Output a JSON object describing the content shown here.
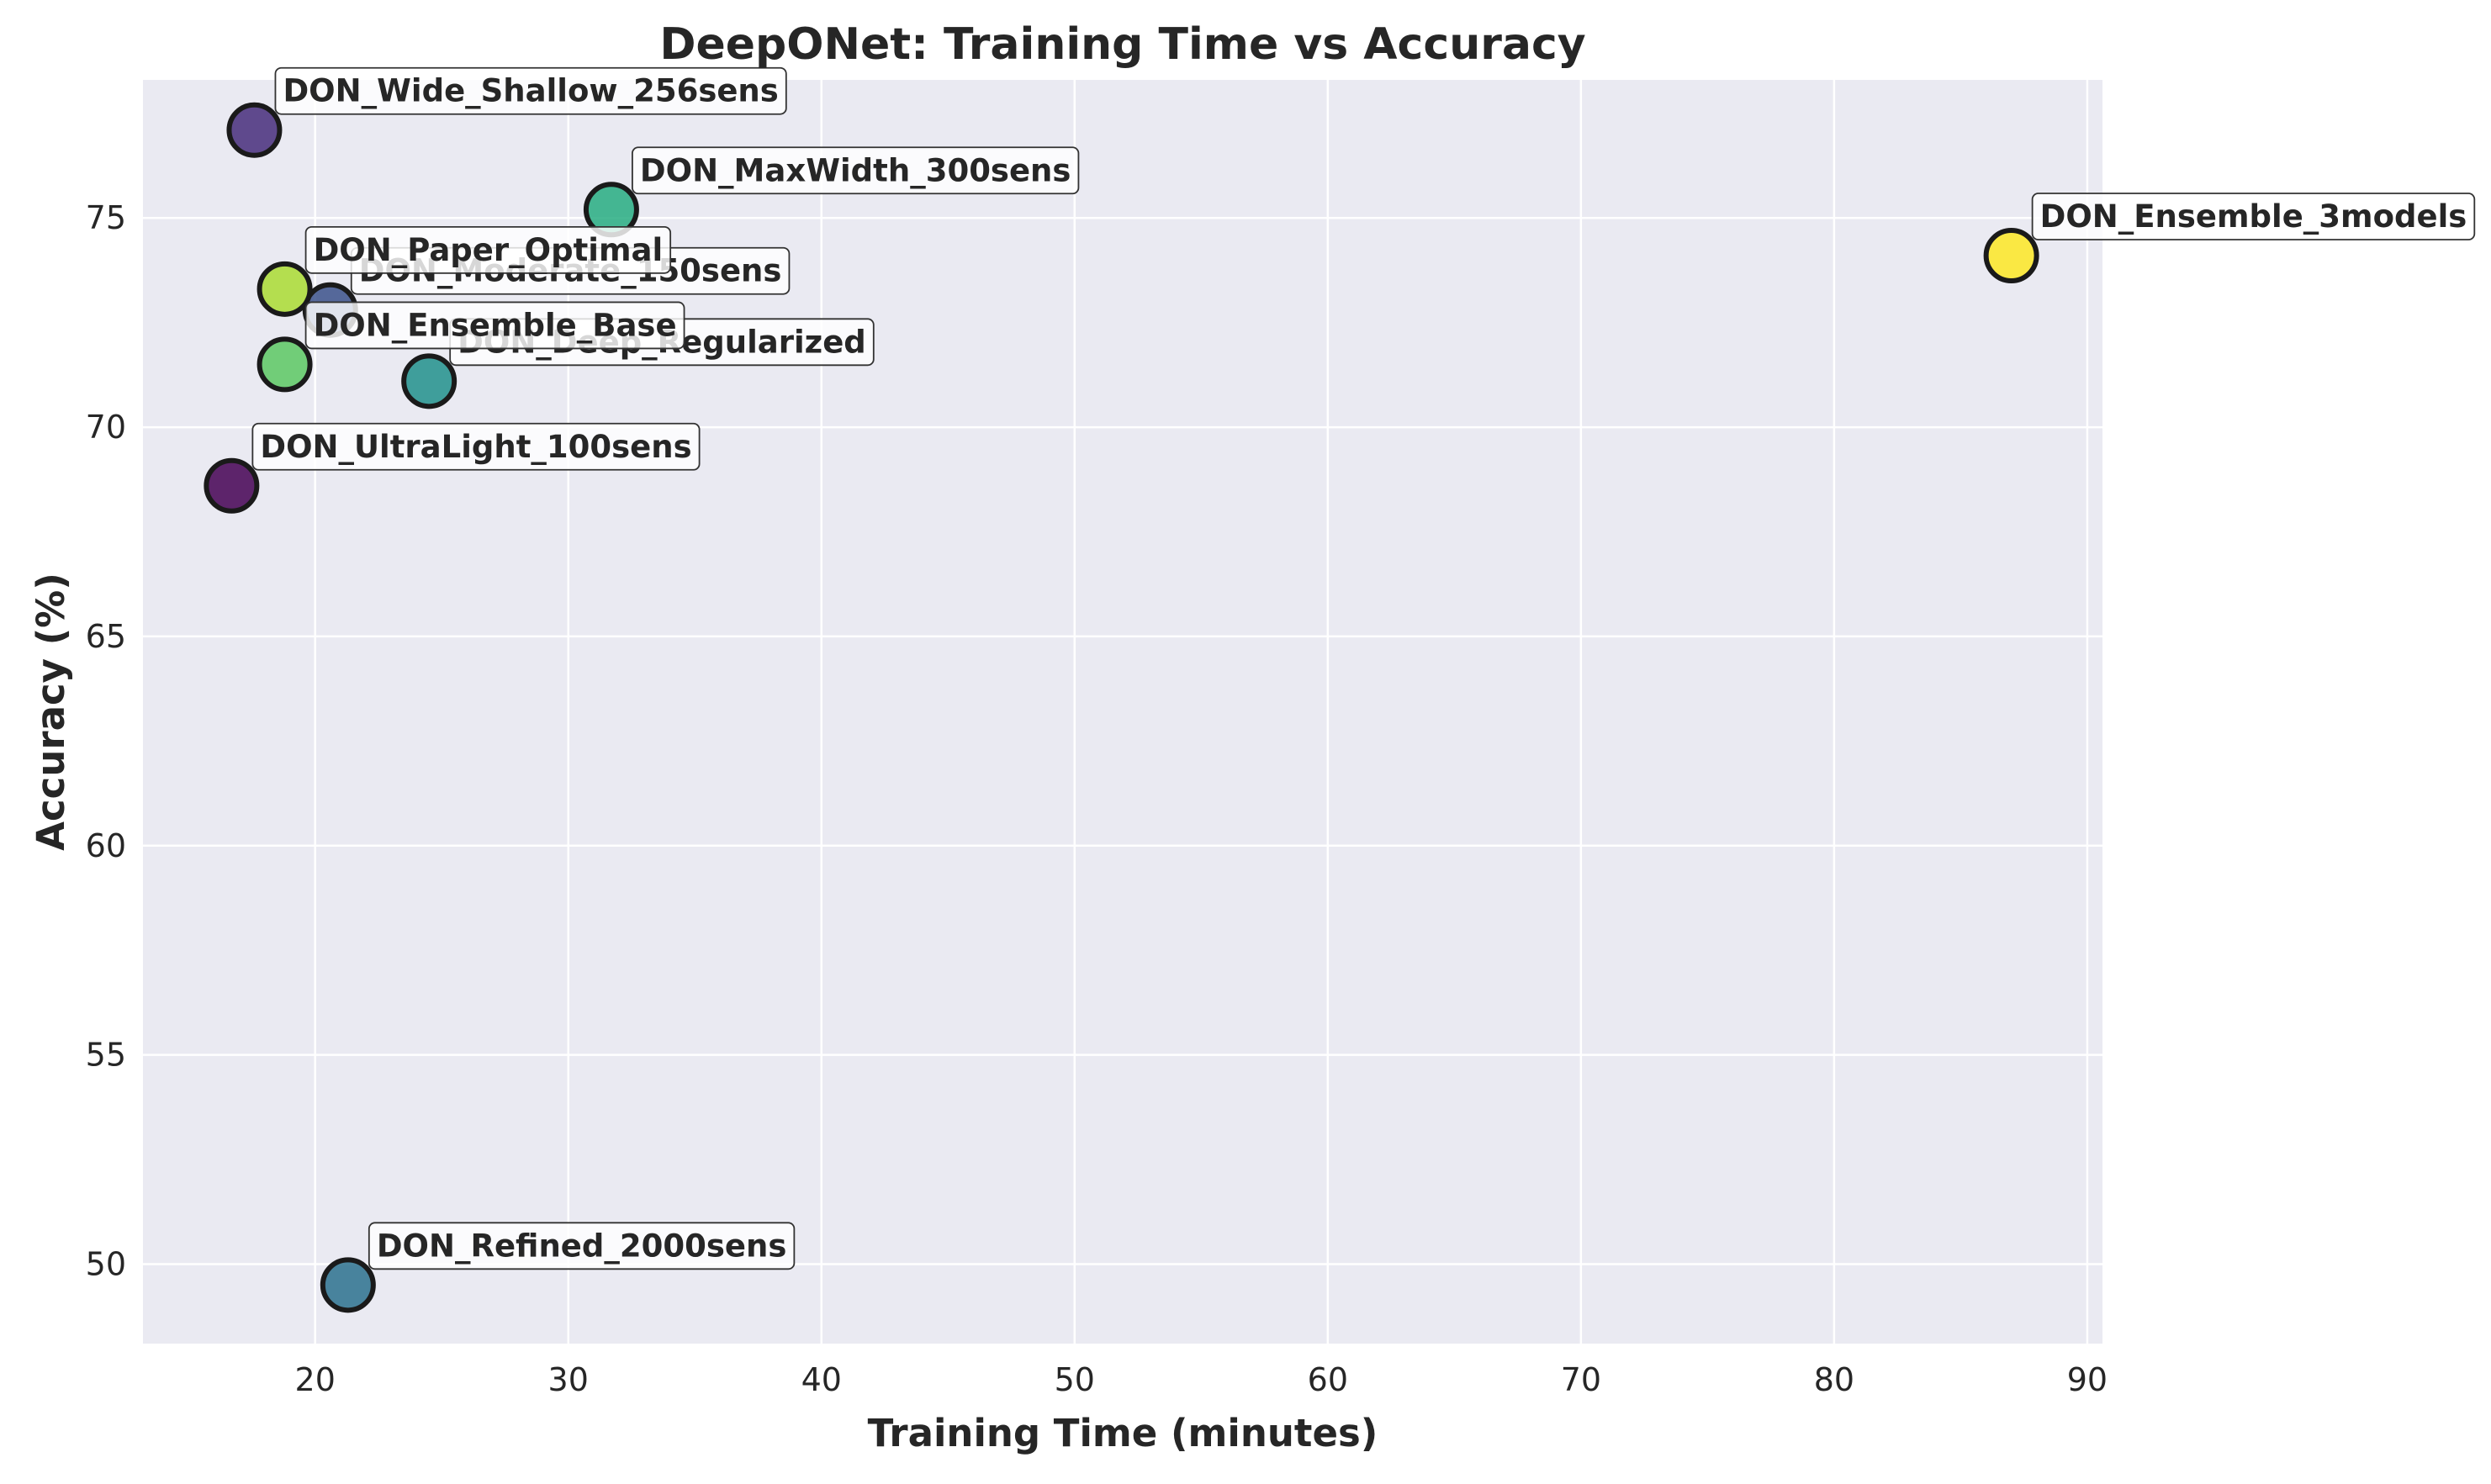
{
  "chart_data": {
    "type": "scatter",
    "title": "DeepONet: Training Time vs Accuracy",
    "xlabel": "Training Time (minutes)",
    "ylabel": "Accuracy (%)",
    "xlim": [
      13.2,
      90.6
    ],
    "ylim": [
      48.1,
      78.3
    ],
    "xticks": [
      20,
      30,
      40,
      50,
      60,
      70,
      80,
      90
    ],
    "yticks": [
      50,
      55,
      60,
      65,
      70,
      75
    ],
    "grid": true,
    "background_color": "#eaeaf2",
    "colormap": "viridis",
    "points": [
      {
        "label": "DON_UltraLight_100sens",
        "x": 16.7,
        "y": 68.6,
        "color": "#440154"
      },
      {
        "label": "DON_Wide_Shallow_256sens",
        "x": 17.6,
        "y": 77.1,
        "color": "#472d7b"
      },
      {
        "label": "DON_Moderate_150sens",
        "x": 20.6,
        "y": 72.8,
        "color": "#3b518b"
      },
      {
        "label": "DON_Refined_2000sens",
        "x": 21.3,
        "y": 49.5,
        "color": "#2c718e"
      },
      {
        "label": "DON_Deep_Regularized",
        "x": 24.5,
        "y": 71.1,
        "color": "#21918c"
      },
      {
        "label": "DON_MaxWidth_300sens",
        "x": 31.7,
        "y": 75.2,
        "color": "#27ad81"
      },
      {
        "label": "DON_Ensemble_Base",
        "x": 18.8,
        "y": 71.5,
        "color": "#5cc863"
      },
      {
        "label": "DON_Paper_Optimal",
        "x": 18.8,
        "y": 73.3,
        "color": "#aadc32"
      },
      {
        "label": "DON_Ensemble_3models",
        "x": 87.0,
        "y": 74.1,
        "color": "#fde725"
      }
    ]
  }
}
